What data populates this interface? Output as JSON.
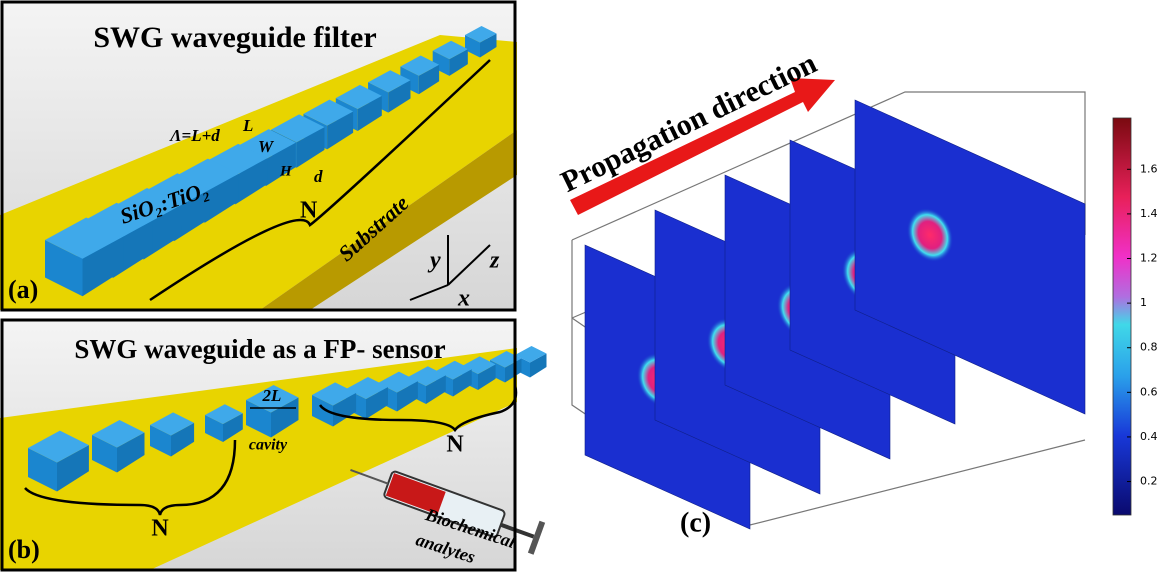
{
  "panel_a": {
    "title": "SWG waveguide filter",
    "label": "(a)",
    "period": "Λ=L+d",
    "length": "L",
    "width": "W",
    "height": "H",
    "gap": "d",
    "material": "SiO₂:TiO₂",
    "count": "N",
    "substrate": "Substrate",
    "axes": {
      "y": "y",
      "z": "z",
      "x": "x"
    }
  },
  "panel_b": {
    "title": "SWG waveguide as a FP- sensor",
    "label": "(b)",
    "cavity_length": "2L",
    "cavity": "cavity",
    "count_left": "N",
    "count_right": "N",
    "analytes": [
      "Biochemical",
      "analytes"
    ]
  },
  "panel_c": {
    "label": "(c)",
    "arrow": "Propagation direction",
    "colorbar": {
      "lim": [
        0.05,
        1.83
      ],
      "ticks": [
        0.2,
        0.4,
        0.6,
        0.8,
        1,
        1.2,
        1.4,
        1.6
      ]
    }
  }
}
